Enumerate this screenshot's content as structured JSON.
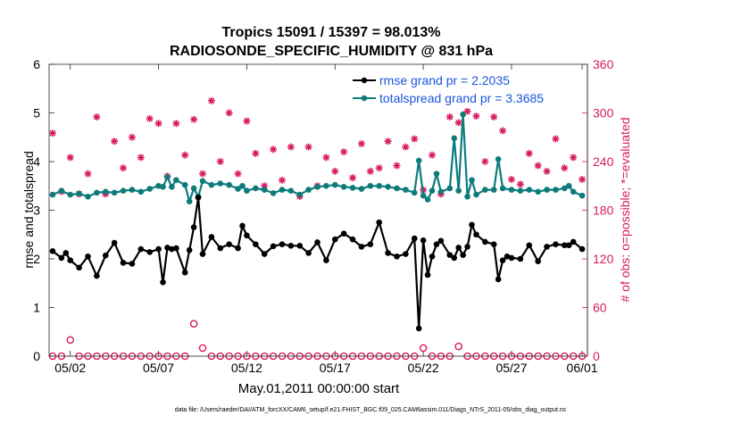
{
  "chart_data": {
    "type": "line",
    "title_line1": "Tropics 15091 / 15397 = 98.013%",
    "title_line2": "RADIOSONDE_SPECIFIC_HUMIDITY @ 831 hPa",
    "xlabel": "May.01,2011 00:00:00 start",
    "ylabel_left": "rmse and totalspread",
    "ylabel_right": "# of obs: o=possible; *=evaluated",
    "footer": "data file: /Users/raeder/DAI/ATM_forcXX/CAM6_setup/f.e21.FHIST_BGC.f09_025.CAM6assim.011/Diags_NTrS_2011-05/obs_diag_output.nc",
    "xlim": [
      0.8,
      31.3
    ],
    "ylim_left": [
      0,
      6
    ],
    "ylim_right": [
      0,
      360
    ],
    "x_ticks": [
      {
        "v": 2,
        "label": "05/02"
      },
      {
        "v": 7,
        "label": "05/07"
      },
      {
        "v": 12,
        "label": "05/12"
      },
      {
        "v": 17,
        "label": "05/17"
      },
      {
        "v": 22,
        "label": "05/22"
      },
      {
        "v": 27,
        "label": "05/27"
      },
      {
        "v": 31,
        "label": "06/01"
      }
    ],
    "y_ticks_left": [
      "0",
      "1",
      "2",
      "3",
      "4",
      "5",
      "6"
    ],
    "y_ticks_right": [
      "0",
      "60",
      "120",
      "180",
      "240",
      "300",
      "360"
    ],
    "colors": {
      "rmse": "#000000",
      "spread": "#0e7b7b",
      "obs": "#d81b60",
      "right_axis": "#d81b60",
      "legend_text": "#1a56db"
    },
    "legend": [
      {
        "name": "rmse grand pr = 2.2035",
        "color": "#000000"
      },
      {
        "name": "totalspread grand pr = 3.3685",
        "color": "#0e7b7b"
      }
    ],
    "series": [
      {
        "name": "rmse",
        "axis": "left",
        "color": "#000000",
        "points": [
          [
            1.0,
            2.16
          ],
          [
            1.5,
            2.02
          ],
          [
            1.75,
            2.12
          ],
          [
            2.0,
            1.97
          ],
          [
            2.5,
            1.82
          ],
          [
            3.0,
            2.05
          ],
          [
            3.5,
            1.65
          ],
          [
            4.0,
            2.07
          ],
          [
            4.5,
            2.33
          ],
          [
            5.0,
            1.92
          ],
          [
            5.5,
            1.9
          ],
          [
            6.0,
            2.2
          ],
          [
            6.5,
            2.14
          ],
          [
            7.0,
            2.2
          ],
          [
            7.25,
            1.52
          ],
          [
            7.5,
            2.23
          ],
          [
            7.75,
            2.2
          ],
          [
            8.0,
            2.22
          ],
          [
            8.5,
            1.72
          ],
          [
            8.75,
            2.18
          ],
          [
            9.0,
            2.65
          ],
          [
            9.25,
            3.26
          ],
          [
            9.5,
            2.1
          ],
          [
            10.0,
            2.45
          ],
          [
            10.5,
            2.22
          ],
          [
            11.0,
            2.3
          ],
          [
            11.5,
            2.22
          ],
          [
            11.75,
            2.68
          ],
          [
            12.0,
            2.48
          ],
          [
            12.5,
            2.3
          ],
          [
            13.0,
            2.1
          ],
          [
            13.5,
            2.26
          ],
          [
            14.0,
            2.3
          ],
          [
            14.5,
            2.27
          ],
          [
            15.0,
            2.27
          ],
          [
            15.5,
            2.12
          ],
          [
            16.0,
            2.34
          ],
          [
            16.5,
            1.97
          ],
          [
            17.0,
            2.4
          ],
          [
            17.5,
            2.52
          ],
          [
            18.0,
            2.4
          ],
          [
            18.5,
            2.25
          ],
          [
            19.0,
            2.3
          ],
          [
            19.5,
            2.75
          ],
          [
            20.0,
            2.12
          ],
          [
            20.5,
            2.05
          ],
          [
            21.0,
            2.1
          ],
          [
            21.5,
            2.42
          ],
          [
            21.75,
            0.57
          ],
          [
            22.0,
            2.38
          ],
          [
            22.25,
            1.67
          ],
          [
            22.5,
            2.05
          ],
          [
            22.75,
            2.3
          ],
          [
            23.0,
            2.37
          ],
          [
            23.5,
            2.08
          ],
          [
            23.75,
            2.02
          ],
          [
            24.0,
            2.23
          ],
          [
            24.25,
            2.08
          ],
          [
            24.5,
            2.25
          ],
          [
            24.75,
            2.7
          ],
          [
            25.0,
            2.5
          ],
          [
            25.5,
            2.35
          ],
          [
            26.0,
            2.3
          ],
          [
            26.25,
            1.58
          ],
          [
            26.5,
            1.97
          ],
          [
            26.75,
            2.05
          ],
          [
            27.0,
            2.02
          ],
          [
            27.5,
            2.0
          ],
          [
            28.0,
            2.28
          ],
          [
            28.5,
            1.95
          ],
          [
            29.0,
            2.25
          ],
          [
            29.5,
            2.3
          ],
          [
            30.0,
            2.28
          ],
          [
            30.25,
            2.28
          ],
          [
            30.5,
            2.35
          ],
          [
            31.0,
            2.2
          ]
        ]
      },
      {
        "name": "totalspread",
        "axis": "left",
        "color": "#0e7b7b",
        "points": [
          [
            1.0,
            3.32
          ],
          [
            1.5,
            3.4
          ],
          [
            2.0,
            3.32
          ],
          [
            2.5,
            3.34
          ],
          [
            3.0,
            3.28
          ],
          [
            3.5,
            3.36
          ],
          [
            4.0,
            3.38
          ],
          [
            4.5,
            3.36
          ],
          [
            5.0,
            3.4
          ],
          [
            5.5,
            3.42
          ],
          [
            6.0,
            3.38
          ],
          [
            6.5,
            3.44
          ],
          [
            7.0,
            3.5
          ],
          [
            7.25,
            3.48
          ],
          [
            7.5,
            3.68
          ],
          [
            7.75,
            3.48
          ],
          [
            8.0,
            3.62
          ],
          [
            8.5,
            3.52
          ],
          [
            8.75,
            3.18
          ],
          [
            9.0,
            3.45
          ],
          [
            9.25,
            3.28
          ],
          [
            9.5,
            3.6
          ],
          [
            10.0,
            3.52
          ],
          [
            10.5,
            3.55
          ],
          [
            11.0,
            3.52
          ],
          [
            11.5,
            3.44
          ],
          [
            11.75,
            3.5
          ],
          [
            12.0,
            3.4
          ],
          [
            12.5,
            3.45
          ],
          [
            13.0,
            3.42
          ],
          [
            13.5,
            3.35
          ],
          [
            14.0,
            3.42
          ],
          [
            14.5,
            3.4
          ],
          [
            15.0,
            3.32
          ],
          [
            15.5,
            3.42
          ],
          [
            16.0,
            3.48
          ],
          [
            16.5,
            3.5
          ],
          [
            17.0,
            3.52
          ],
          [
            17.5,
            3.48
          ],
          [
            18.0,
            3.46
          ],
          [
            18.5,
            3.44
          ],
          [
            19.0,
            3.5
          ],
          [
            19.5,
            3.5
          ],
          [
            20.0,
            3.48
          ],
          [
            20.5,
            3.45
          ],
          [
            21.0,
            3.42
          ],
          [
            21.5,
            3.36
          ],
          [
            21.75,
            4.02
          ],
          [
            22.0,
            3.3
          ],
          [
            22.25,
            3.22
          ],
          [
            22.5,
            3.4
          ],
          [
            22.75,
            3.75
          ],
          [
            23.0,
            3.38
          ],
          [
            23.5,
            3.45
          ],
          [
            23.75,
            4.48
          ],
          [
            24.0,
            3.4
          ],
          [
            24.25,
            4.97
          ],
          [
            24.5,
            3.28
          ],
          [
            24.75,
            3.62
          ],
          [
            25.0,
            3.32
          ],
          [
            25.5,
            3.42
          ],
          [
            26.0,
            3.42
          ],
          [
            26.25,
            4.05
          ],
          [
            26.5,
            3.45
          ],
          [
            27.0,
            3.42
          ],
          [
            27.5,
            3.4
          ],
          [
            28.0,
            3.42
          ],
          [
            28.5,
            3.38
          ],
          [
            29.0,
            3.42
          ],
          [
            29.5,
            3.42
          ],
          [
            30.0,
            3.45
          ],
          [
            30.25,
            3.5
          ],
          [
            30.5,
            3.38
          ],
          [
            31.0,
            3.3
          ]
        ]
      },
      {
        "name": "# obs possible",
        "axis": "right",
        "marker": "o",
        "color": "#d81b60",
        "points": [
          [
            1.0,
            0
          ],
          [
            1.5,
            0
          ],
          [
            2.0,
            20
          ],
          [
            2.5,
            0
          ],
          [
            3.0,
            0
          ],
          [
            3.5,
            0
          ],
          [
            4.0,
            0
          ],
          [
            4.5,
            0
          ],
          [
            5.0,
            0
          ],
          [
            5.5,
            0
          ],
          [
            6.0,
            0
          ],
          [
            6.5,
            0
          ],
          [
            7.0,
            0
          ],
          [
            7.5,
            0
          ],
          [
            8.0,
            0
          ],
          [
            8.5,
            0
          ],
          [
            9.0,
            40
          ],
          [
            9.5,
            10
          ],
          [
            10.0,
            0
          ],
          [
            10.5,
            0
          ],
          [
            11.0,
            0
          ],
          [
            11.5,
            0
          ],
          [
            12.0,
            0
          ],
          [
            12.5,
            0
          ],
          [
            13.0,
            0
          ],
          [
            13.5,
            0
          ],
          [
            14.0,
            0
          ],
          [
            14.5,
            0
          ],
          [
            15.0,
            0
          ],
          [
            15.5,
            0
          ],
          [
            16.0,
            0
          ],
          [
            16.5,
            0
          ],
          [
            17.0,
            0
          ],
          [
            17.5,
            0
          ],
          [
            18.0,
            0
          ],
          [
            18.5,
            0
          ],
          [
            19.0,
            0
          ],
          [
            19.5,
            0
          ],
          [
            20.0,
            0
          ],
          [
            20.5,
            0
          ],
          [
            21.0,
            0
          ],
          [
            21.5,
            0
          ],
          [
            22.0,
            10
          ],
          [
            22.5,
            0
          ],
          [
            23.0,
            0
          ],
          [
            23.5,
            0
          ],
          [
            24.0,
            12
          ],
          [
            24.5,
            0
          ],
          [
            25.0,
            0
          ],
          [
            25.5,
            0
          ],
          [
            26.0,
            0
          ],
          [
            26.5,
            0
          ],
          [
            27.0,
            0
          ],
          [
            27.5,
            0
          ],
          [
            28.0,
            0
          ],
          [
            28.5,
            0
          ],
          [
            29.0,
            0
          ],
          [
            29.5,
            0
          ],
          [
            30.0,
            0
          ],
          [
            30.5,
            0
          ],
          [
            31.0,
            0
          ]
        ]
      },
      {
        "name": "# obs evaluated",
        "axis": "right",
        "marker": "*",
        "color": "#d81b60",
        "points": [
          [
            1.0,
            275
          ],
          [
            1.5,
            203
          ],
          [
            2.0,
            245
          ],
          [
            2.5,
            200
          ],
          [
            3.0,
            225
          ],
          [
            3.5,
            295
          ],
          [
            4.0,
            200
          ],
          [
            4.5,
            265
          ],
          [
            5.0,
            232
          ],
          [
            5.5,
            270
          ],
          [
            6.0,
            245
          ],
          [
            6.5,
            293
          ],
          [
            7.0,
            287
          ],
          [
            7.5,
            222
          ],
          [
            8.0,
            287
          ],
          [
            8.5,
            248
          ],
          [
            9.0,
            292
          ],
          [
            9.5,
            225
          ],
          [
            10.0,
            315
          ],
          [
            10.5,
            240
          ],
          [
            11.0,
            300
          ],
          [
            11.5,
            225
          ],
          [
            12.0,
            290
          ],
          [
            12.5,
            250
          ],
          [
            13.0,
            210
          ],
          [
            13.5,
            255
          ],
          [
            14.0,
            217
          ],
          [
            14.5,
            258
          ],
          [
            15.0,
            197
          ],
          [
            15.5,
            258
          ],
          [
            16.0,
            210
          ],
          [
            16.5,
            245
          ],
          [
            17.0,
            228
          ],
          [
            17.5,
            252
          ],
          [
            18.0,
            220
          ],
          [
            18.5,
            262
          ],
          [
            19.0,
            228
          ],
          [
            19.5,
            232
          ],
          [
            20.0,
            265
          ],
          [
            20.5,
            235
          ],
          [
            21.0,
            258
          ],
          [
            21.5,
            268
          ],
          [
            22.0,
            205
          ],
          [
            22.5,
            248
          ],
          [
            23.0,
            200
          ],
          [
            23.5,
            295
          ],
          [
            24.0,
            288
          ],
          [
            24.5,
            302
          ],
          [
            25.0,
            296
          ],
          [
            25.5,
            240
          ],
          [
            26.0,
            295
          ],
          [
            26.5,
            278
          ],
          [
            27.0,
            218
          ],
          [
            27.5,
            212
          ],
          [
            28.0,
            250
          ],
          [
            28.5,
            235
          ],
          [
            29.0,
            228
          ],
          [
            29.5,
            268
          ],
          [
            30.0,
            232
          ],
          [
            30.5,
            245
          ],
          [
            31.0,
            218
          ]
        ]
      }
    ]
  }
}
